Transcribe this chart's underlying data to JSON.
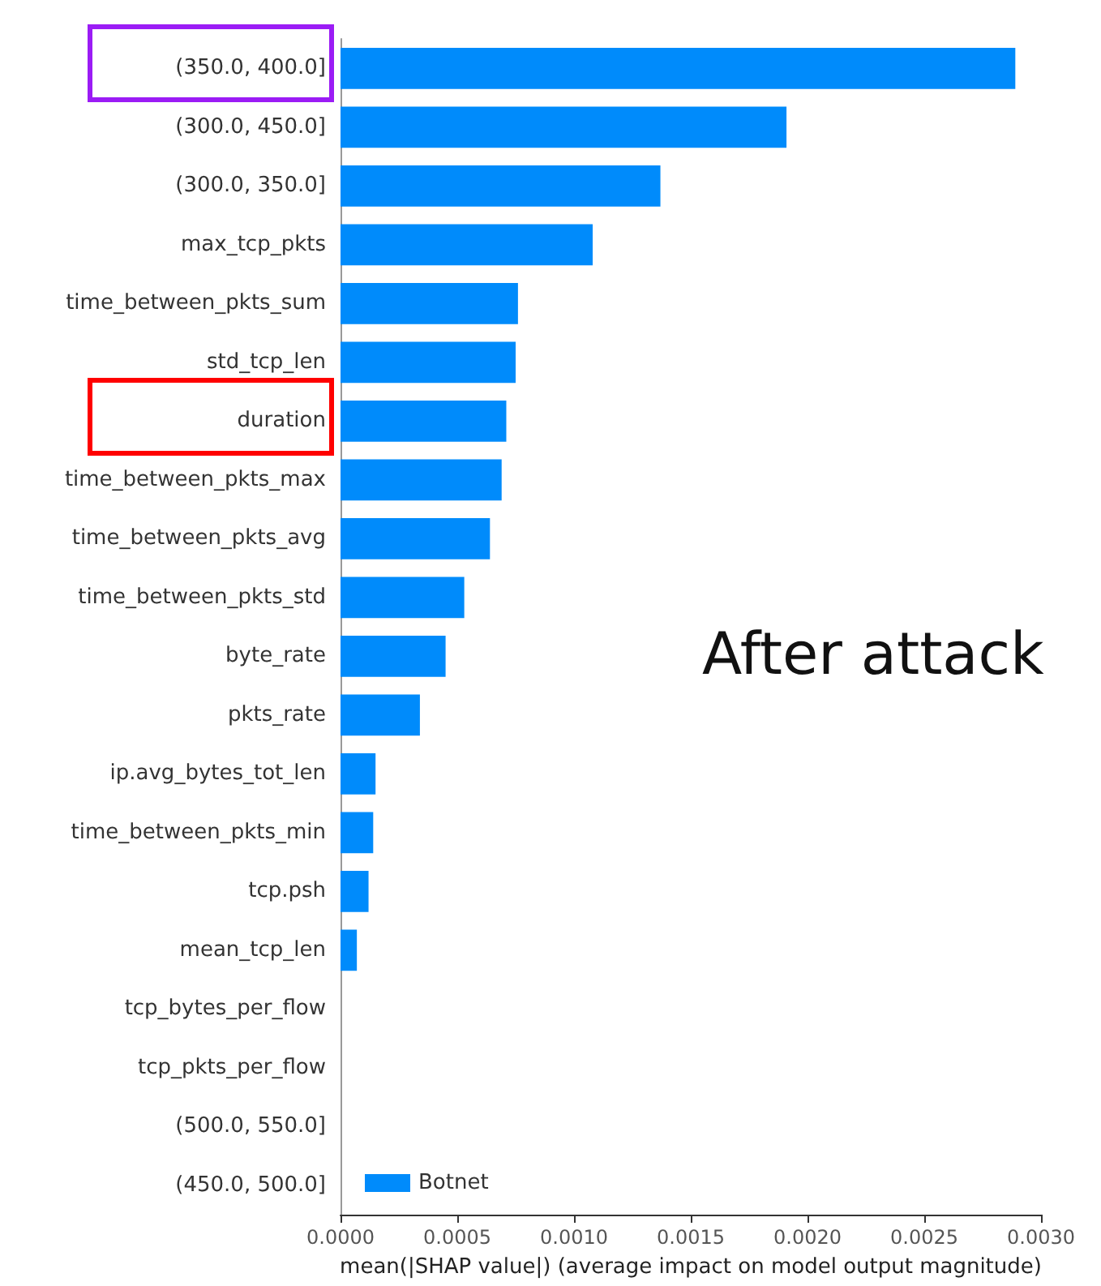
{
  "chart_data": {
    "type": "bar",
    "orientation": "horizontal",
    "xlabel": "mean(|SHAP value|) (average impact on model output magnitude)",
    "annotations": [
      "After attack"
    ],
    "categories": [
      "(350.0, 400.0]",
      "(300.0, 450.0]",
      "(300.0, 350.0]",
      "max_tcp_pkts",
      "time_between_pkts_sum",
      "std_tcp_len",
      "duration",
      "time_between_pkts_max",
      "time_between_pkts_avg",
      "time_between_pkts_std",
      "byte_rate",
      "pkts_rate",
      "ip.avg_bytes_tot_len",
      "time_between_pkts_min",
      "tcp.psh",
      "mean_tcp_len",
      "tcp_bytes_per_flow",
      "tcp_pkts_per_flow",
      "(500.0, 550.0]",
      "(450.0, 500.0]"
    ],
    "series": [
      {
        "name": "Botnet",
        "color": "#008bfb",
        "values": [
          0.00289,
          0.00191,
          0.00137,
          0.00108,
          0.00076,
          0.00075,
          0.00071,
          0.00069,
          0.00064,
          0.00053,
          0.00045,
          0.00034,
          0.00015,
          0.00014,
          0.00012,
          7e-05,
          0,
          0,
          0,
          0
        ]
      }
    ],
    "xlim": [
      0,
      0.003
    ],
    "xticks": [
      {
        "value": 0,
        "label": "0.0000"
      },
      {
        "value": 0.0005,
        "label": "0.0005"
      },
      {
        "value": 0.001,
        "label": "0.0010"
      },
      {
        "value": 0.0015,
        "label": "0.0015"
      },
      {
        "value": 0.002,
        "label": "0.0020"
      },
      {
        "value": 0.0025,
        "label": "0.0025"
      },
      {
        "value": 0.003,
        "label": "0.0030"
      }
    ],
    "grid": false,
    "legend": "bottom left"
  }
}
